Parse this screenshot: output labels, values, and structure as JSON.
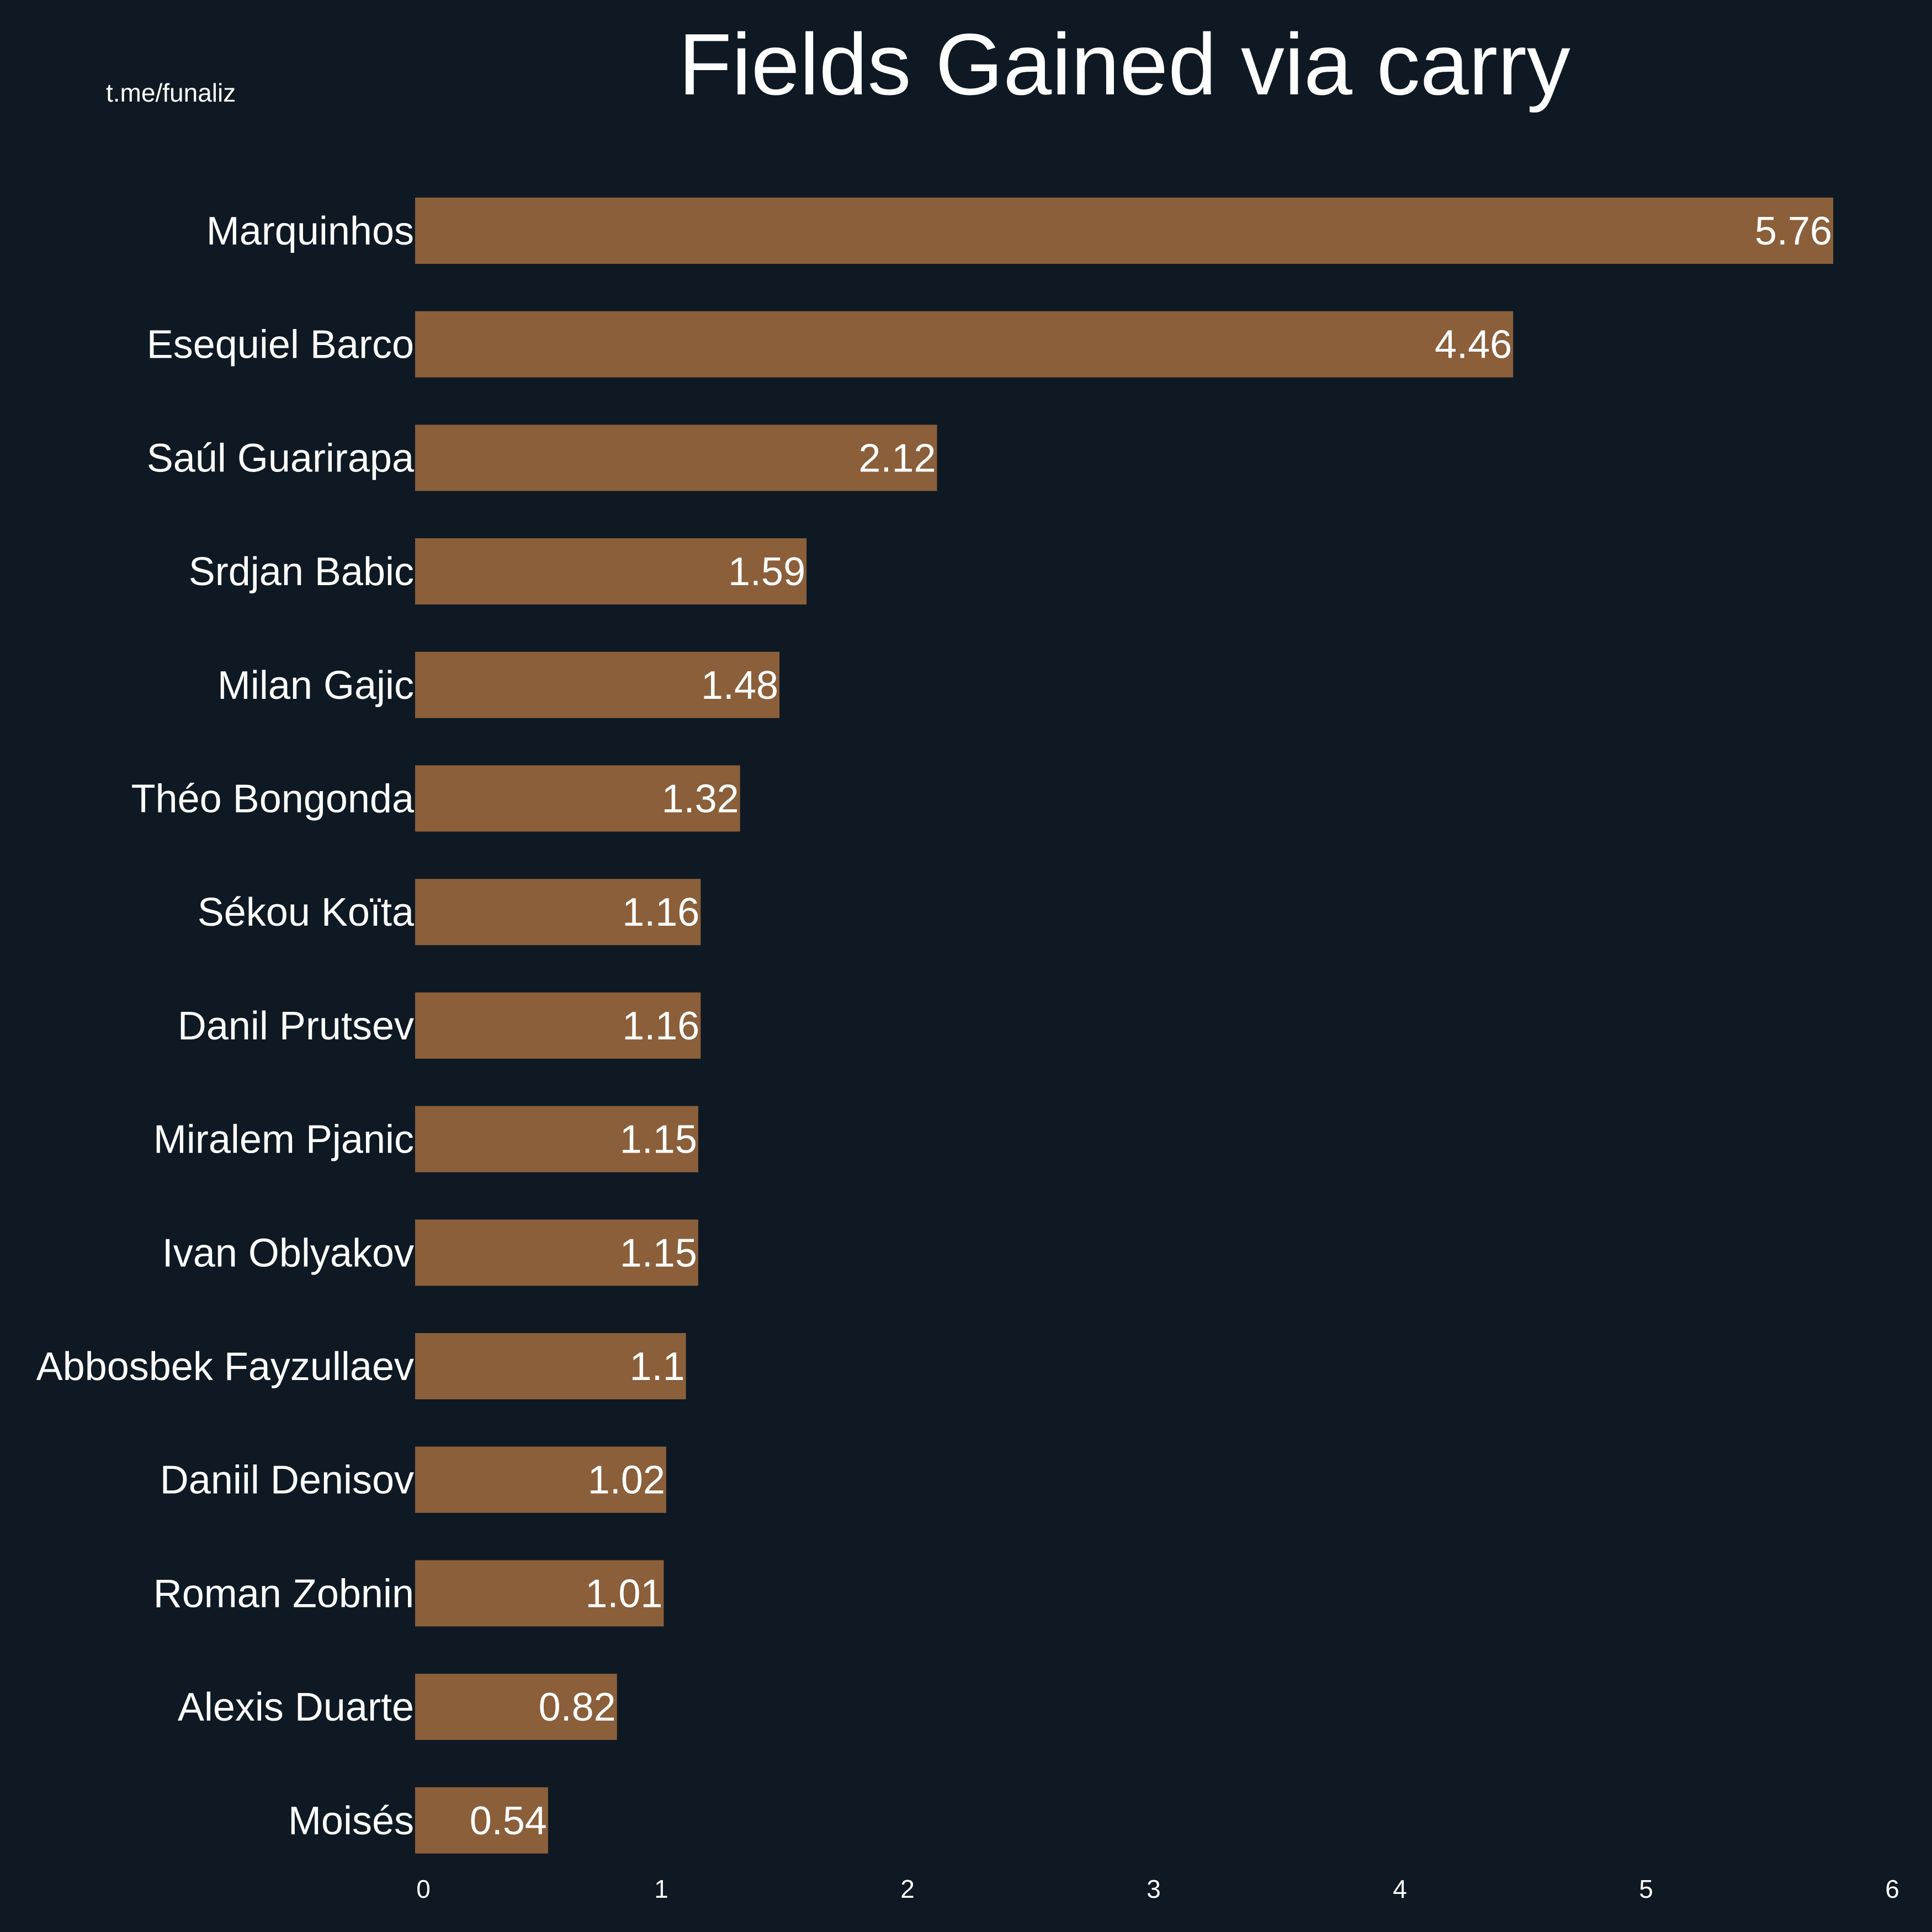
{
  "watermark": "t.me/funaliz",
  "chart_data": {
    "type": "bar",
    "orientation": "horizontal",
    "title": "Fields Gained via carry",
    "xlabel": "",
    "ylabel": "",
    "xlim": [
      0,
      6
    ],
    "xticks": [
      "0",
      "1",
      "2",
      "3",
      "4",
      "5",
      "6"
    ],
    "grid": false,
    "categories": [
      "Marquinhos",
      "Esequiel Barco",
      "Saúl Guarirapa",
      "Srdjan Babic",
      "Milan Gajic",
      "Théo Bongonda",
      "Sékou Koïta",
      "Danil Prutsev",
      "Miralem Pjanic",
      "Ivan Oblyakov",
      "Abbosbek Fayzullaev",
      "Daniil Denisov",
      "Roman Zobnin",
      "Alexis Duarte",
      "Moisés"
    ],
    "values": [
      5.76,
      4.46,
      2.12,
      1.59,
      1.48,
      1.32,
      1.16,
      1.16,
      1.15,
      1.15,
      1.1,
      1.02,
      1.01,
      0.82,
      0.54
    ],
    "labels": [
      "5.76",
      "4.46",
      "2.12",
      "1.59",
      "1.48",
      "1.32",
      "1.16",
      "1.16",
      "1.15",
      "1.15",
      "1.1",
      "1.02",
      "1.01",
      "0.82",
      "0.54"
    ],
    "colors": {
      "background": "#0f1923",
      "bar": "#8b5f3a",
      "text": "#ffffff"
    }
  }
}
